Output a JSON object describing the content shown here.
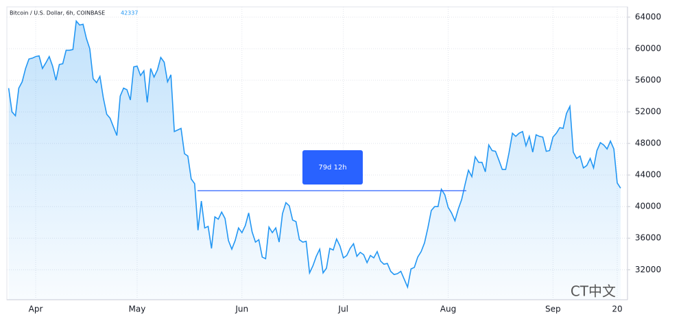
{
  "chart_data": {
    "type": "area",
    "title": "Bitcoin / U.S. Dollar, 6h, COINBASE",
    "last_value": "42337",
    "annotation": "79d 12h",
    "watermark": "CT中文",
    "color": "#2196f3",
    "grid": true,
    "ylim": [
      28200,
      65300
    ],
    "yticks": [
      32000,
      36000,
      40000,
      44000,
      48000,
      52000,
      56000,
      60000,
      64000
    ],
    "categories": [
      null,
      null,
      null,
      null,
      null,
      null,
      null,
      null,
      "Apr",
      null,
      null,
      null,
      null,
      null,
      null,
      null,
      null,
      null,
      null,
      null,
      null,
      null,
      null,
      null,
      null,
      null,
      null,
      null,
      null,
      null,
      null,
      null,
      null,
      null,
      null,
      null,
      null,
      null,
      "May",
      null,
      null,
      null,
      null,
      null,
      null,
      null,
      null,
      null,
      null,
      null,
      null,
      null,
      null,
      null,
      null,
      null,
      null,
      null,
      null,
      null,
      null,
      null,
      null,
      null,
      null,
      null,
      null,
      null,
      null,
      "Jun",
      null,
      null,
      null,
      null,
      null,
      null,
      null,
      null,
      null,
      null,
      null,
      null,
      null,
      null,
      null,
      null,
      null,
      null,
      null,
      null,
      null,
      null,
      null,
      null,
      null,
      null,
      null,
      null,
      null,
      "Jul",
      null,
      null,
      null,
      null,
      null,
      null,
      null,
      null,
      null,
      null,
      null,
      null,
      null,
      null,
      null,
      null,
      null,
      null,
      null,
      null,
      null,
      null,
      null,
      null,
      null,
      null,
      null,
      null,
      null,
      null,
      "Aug",
      null,
      null,
      null,
      null,
      null,
      null,
      null,
      null,
      null,
      null,
      null,
      null,
      null,
      null,
      null,
      null,
      null,
      null,
      null,
      null,
      null,
      null,
      null,
      null,
      null,
      null,
      null,
      null,
      null,
      null,
      "Sep",
      null,
      null,
      null,
      null,
      null,
      null,
      null,
      null,
      null,
      null,
      null,
      null,
      null,
      null,
      null,
      null,
      null,
      null,
      "20",
      null
    ],
    "values": [
      55000,
      52000,
      51500,
      55000,
      55800,
      57500,
      58700,
      58800,
      59000,
      59100,
      57500,
      58200,
      59000,
      57800,
      56000,
      58000,
      58100,
      59800,
      59800,
      59900,
      63500,
      63000,
      63100,
      61300,
      60000,
      56200,
      55700,
      56500,
      53800,
      51700,
      51200,
      50100,
      49000,
      54000,
      55000,
      54800,
      53500,
      57700,
      57800,
      56600,
      57200,
      53200,
      57500,
      56400,
      57300,
      58900,
      58300,
      55800,
      56700,
      49500,
      49700,
      49900,
      46700,
      46400,
      43500,
      42900,
      37000,
      40700,
      37300,
      37500,
      34700,
      38700,
      38400,
      39300,
      38500,
      35700,
      34600,
      35700,
      37300,
      36700,
      37600,
      39200,
      36800,
      35500,
      35800,
      33600,
      33400,
      37400,
      36700,
      37300,
      35500,
      39100,
      40500,
      40100,
      38300,
      38100,
      35800,
      35500,
      35600,
      31600,
      32500,
      33700,
      34600,
      31600,
      32200,
      34700,
      34500,
      35900,
      35000,
      33500,
      33800,
      34700,
      35300,
      33700,
      34200,
      33900,
      32900,
      33800,
      33500,
      34300,
      33100,
      32700,
      32800,
      31800,
      31400,
      31500,
      31800,
      30800,
      29800,
      32100,
      32300,
      33600,
      34300,
      35400,
      37300,
      39500,
      40000,
      40000,
      42200,
      41500,
      39900,
      39200,
      38200,
      39700,
      40900,
      42800,
      44600,
      43800,
      46300,
      45600,
      45600,
      44400,
      47800,
      47100,
      47000,
      45900,
      44700,
      44700,
      46800,
      49300,
      48900,
      49300,
      49500,
      47700,
      48900,
      46900,
      49100,
      48900,
      48800,
      47000,
      47100,
      48800,
      49300,
      50000,
      49900,
      51800,
      52700,
      46900,
      46100,
      46400,
      44900,
      45200,
      46100,
      44900,
      47100,
      48100,
      47800,
      47300,
      48300,
      47300,
      43000,
      42337
    ]
  }
}
